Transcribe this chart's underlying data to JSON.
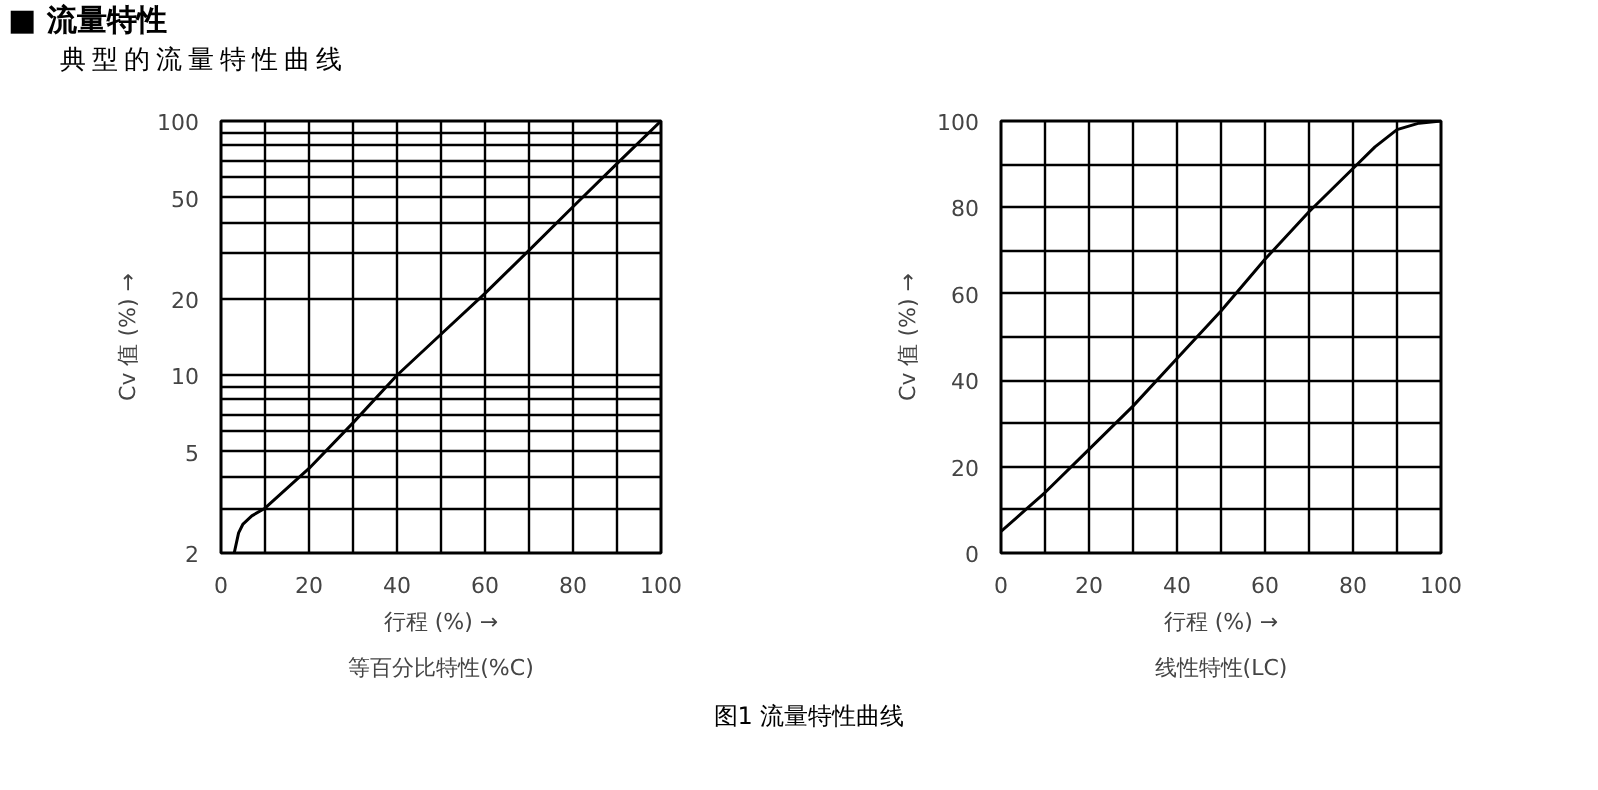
{
  "chart_data": [
    {
      "type": "line",
      "title": "等百分比特性(%C)",
      "xlabel": "行程 (%) →",
      "ylabel": "Cv 值 (%) →",
      "annotations": [
        "■ 流量特性",
        "典型的流量特性曲线"
      ],
      "x": [
        3,
        4,
        5,
        7,
        10,
        20,
        30,
        40,
        50,
        60,
        70,
        80,
        90,
        100
      ],
      "series": [
        {
          "color": "#000000",
          "values": [
            2,
            2.4,
            2.6,
            2.8,
            3,
            4.3,
            6.5,
            10,
            14.5,
            21,
            31,
            46,
            68,
            100
          ]
        }
      ],
      "xlim": [
        0,
        100
      ],
      "ylim": [
        2,
        100
      ],
      "log": true,
      "grid": true,
      "xticks": [
        0,
        {
          "value": 10,
          "label": null
        },
        20,
        {
          "value": 30,
          "label": null
        },
        40,
        {
          "value": 50,
          "label": null
        },
        60,
        {
          "value": 70,
          "label": null
        },
        80,
        {
          "value": 90,
          "label": null
        },
        100
      ],
      "yticks": [
        2,
        {
          "value": 3,
          "label": null
        },
        {
          "value": 4,
          "label": null
        },
        5,
        {
          "value": 6,
          "label": null
        },
        {
          "value": 7,
          "label": null
        },
        {
          "value": 8,
          "label": null
        },
        {
          "value": 9,
          "label": null
        },
        10,
        20,
        {
          "value": 30,
          "label": null
        },
        {
          "value": 40,
          "label": null
        },
        50,
        {
          "value": 60,
          "label": null
        },
        {
          "value": 70,
          "label": null
        },
        {
          "value": 80,
          "label": null
        },
        {
          "value": 90,
          "label": null
        },
        100
      ]
    },
    {
      "type": "line",
      "title": "线性特性(LC)",
      "xlabel": "行程 (%) →",
      "ylabel": "Cv 值 (%) →",
      "annotations": [
        "图1 流量特性曲线"
      ],
      "x": [
        0,
        10,
        20,
        30,
        40,
        50,
        60,
        70,
        80,
        85,
        90,
        95,
        100
      ],
      "series": [
        {
          "color": "#000000",
          "values": [
            5,
            14,
            24,
            34,
            45,
            56,
            68,
            79,
            89,
            94,
            98,
            99.5,
            100
          ]
        }
      ],
      "xlim": [
        0,
        100
      ],
      "ylim": [
        0,
        100
      ],
      "grid": true,
      "xticks": [
        0,
        {
          "value": 10,
          "label": null
        },
        20,
        {
          "value": 30,
          "label": null
        },
        40,
        {
          "value": 50,
          "label": null
        },
        60,
        {
          "value": 70,
          "label": null
        },
        80,
        {
          "value": 90,
          "label": null
        },
        100
      ],
      "yticks": [
        0,
        {
          "value": 10,
          "label": null
        },
        20,
        {
          "value": 30,
          "label": null
        },
        40,
        {
          "value": 50,
          "label": null
        },
        60,
        {
          "value": 70,
          "label": null
        },
        80,
        {
          "value": 90,
          "label": null
        },
        100
      ]
    }
  ]
}
